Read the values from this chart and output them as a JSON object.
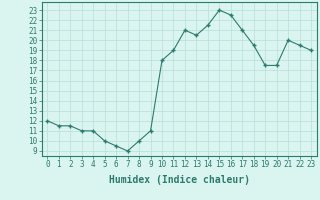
{
  "x": [
    0,
    1,
    2,
    3,
    4,
    5,
    6,
    7,
    8,
    9,
    10,
    11,
    12,
    13,
    14,
    15,
    16,
    17,
    18,
    19,
    20,
    21,
    22,
    23
  ],
  "y": [
    12,
    11.5,
    11.5,
    11,
    11,
    10,
    9.5,
    9,
    10,
    11,
    18,
    19,
    21,
    20.5,
    21.5,
    23,
    22.5,
    21,
    19.5,
    17.5,
    17.5,
    20,
    19.5,
    19
  ],
  "line_color": "#2d7a6e",
  "marker_color": "#2d7a6e",
  "bg_color": "#daf5f0",
  "grid_color": "#b8ddd8",
  "xlabel": "Humidex (Indice chaleur)",
  "xlim": [
    -0.5,
    23.5
  ],
  "ylim": [
    8.5,
    23.8
  ],
  "yticks": [
    9,
    10,
    11,
    12,
    13,
    14,
    15,
    16,
    17,
    18,
    19,
    20,
    21,
    22,
    23
  ],
  "xticks": [
    0,
    1,
    2,
    3,
    4,
    5,
    6,
    7,
    8,
    9,
    10,
    11,
    12,
    13,
    14,
    15,
    16,
    17,
    18,
    19,
    20,
    21,
    22,
    23
  ],
  "tick_fontsize": 5.5,
  "xlabel_fontsize": 7,
  "axis_color": "#2d7a6e"
}
